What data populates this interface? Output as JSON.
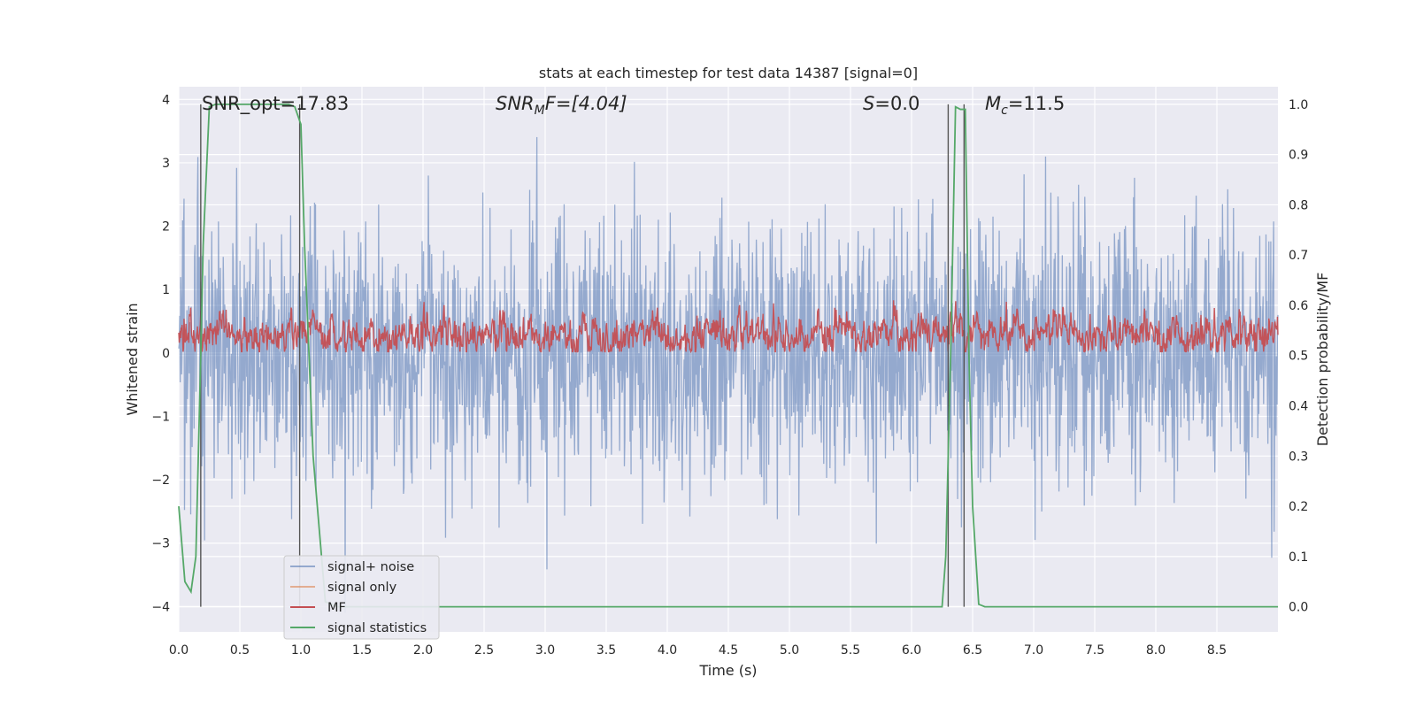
{
  "chart_data": {
    "type": "line",
    "title": "stats at each timestep for test data 14387 [signal=0]",
    "xlabel": "Time (s)",
    "ylabel": "Whitened strain",
    "ylabel_right": "Detection probability/MF",
    "xlim": [
      0.0,
      9.0
    ],
    "ylim": [
      -4.4,
      4.2
    ],
    "ylim_right": [
      -0.05,
      1.035
    ],
    "x_ticks": [
      "0.0",
      "0.5",
      "1.0",
      "1.5",
      "2.0",
      "2.5",
      "3.0",
      "3.5",
      "4.0",
      "4.5",
      "5.0",
      "5.5",
      "6.0",
      "6.5",
      "7.0",
      "7.5",
      "8.0",
      "8.5"
    ],
    "y_ticks": [
      "−4",
      "−3",
      "−2",
      "−1",
      "0",
      "1",
      "2",
      "3",
      "4"
    ],
    "y_ticks_right": [
      "0.0",
      "0.1",
      "0.2",
      "0.3",
      "0.4",
      "0.5",
      "0.6",
      "0.7",
      "0.8",
      "0.9",
      "1.0"
    ],
    "annotations": {
      "snr_opt": "SNR_opt=17.83",
      "snr_mf_sym": "SNR",
      "snr_mf_sub": "M",
      "snr_mf_rest": "F=[4.04]",
      "s_sym": "S",
      "s_rest": "=0.0",
      "mc_sym": "M",
      "mc_sub": "c",
      "mc_rest": "=11.5"
    },
    "vlines": [
      0.18,
      0.99,
      6.3,
      6.43
    ],
    "series": [
      {
        "name": "signal+ noise",
        "color": "#4c72b0",
        "description": "whitened strain noise, roughly Gaussian with sigma≈1, range about −4 to 3.7",
        "sigma": 1.0,
        "n_points": 2300
      },
      {
        "name": "signal only",
        "color": "#dd8452",
        "values_flat": 0
      },
      {
        "name": "MF",
        "color": "#c44e52",
        "description": "matched filter output fluctuating around 0.3 on strain axis, range about 0 to 0.95",
        "n_points": 2300
      },
      {
        "name": "signal statistics",
        "color": "#55a868",
        "x": [
          0.0,
          0.05,
          0.1,
          0.14,
          0.18,
          0.2,
          0.25,
          0.3,
          0.4,
          0.5,
          0.6,
          0.7,
          0.8,
          0.9,
          0.95,
          1.0,
          1.03,
          1.1,
          1.2,
          1.3,
          1.5,
          2.0,
          3.0,
          4.0,
          5.0,
          6.0,
          6.2,
          6.25,
          6.28,
          6.32,
          6.36,
          6.4,
          6.44,
          6.47,
          6.5,
          6.55,
          6.6,
          6.7,
          7.0,
          8.0,
          9.0
        ],
        "y": [
          0.2,
          0.05,
          0.03,
          0.1,
          0.5,
          0.72,
          0.995,
          1.0,
          1.0,
          1.0,
          1.0,
          1.0,
          1.0,
          1.0,
          0.995,
          0.96,
          0.72,
          0.3,
          0.01,
          0.0,
          0.0,
          0.0,
          0.0,
          0.0,
          0.0,
          0.0,
          0.0,
          0.0,
          0.1,
          0.5,
          0.995,
          0.99,
          0.99,
          0.5,
          0.2,
          0.005,
          0.0,
          0.0,
          0.0,
          0.0,
          0.0
        ]
      }
    ],
    "legend": {
      "placement": "lower-left",
      "entries": [
        "signal+ noise",
        "signal only",
        "MF",
        "signal statistics"
      ]
    },
    "grid": true
  },
  "colors": {
    "plot_background": "#eaeaf2",
    "grid": "#ffffff"
  }
}
